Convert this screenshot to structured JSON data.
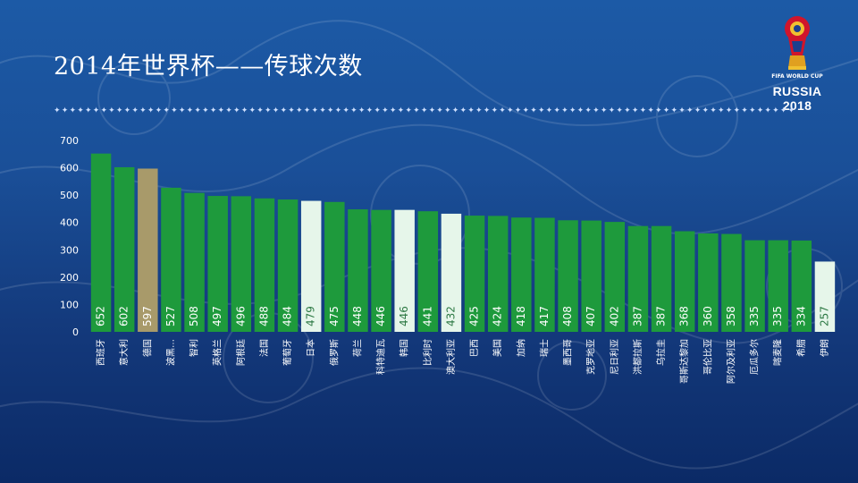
{
  "slide": {
    "title": "2014年世界杯——传球次数",
    "logo_line1": "FIFA WORLD CUP",
    "logo_line2": "RUSSIA 2018",
    "divider": "✦✦✦✦✦✦✦✦✦✦✦✦✦✦✦✦✦✦✦✦✦✦✦✦✦✦✦✦✦✦✦✦✦✦✦✦✦✦✦✦✦✦✦✦✦✦✦✦✦✦✦✦✦✦✦✦✦✦✦✦✦✦✦✦✦✦✦✦✦✦✦✦✦✦✦✦✦✦✦✦✦✦✦✦✦✦✦✦✦✦✦✦✦✦✦"
  },
  "chart_data": {
    "type": "bar",
    "title": "",
    "xlabel": "",
    "ylabel": "",
    "ylim": [
      0,
      700
    ],
    "yticks": [
      0,
      100,
      200,
      300,
      400,
      500,
      600,
      700
    ],
    "grid": false,
    "categories": [
      "西班牙",
      "意大利",
      "德国",
      "波黑…",
      "智利",
      "英格兰",
      "阿根廷",
      "法国",
      "葡萄牙",
      "日本",
      "俄罗斯",
      "荷兰",
      "科特迪瓦",
      "韩国",
      "比利时",
      "澳大利亚",
      "巴西",
      "美国",
      "加纳",
      "瑞士",
      "墨西哥",
      "克罗地亚",
      "尼日利亚",
      "洪都拉斯",
      "乌拉圭",
      "哥斯达黎加",
      "哥伦比亚",
      "阿尔及利亚",
      "厄瓜多尔",
      "喀麦隆",
      "希腊",
      "伊朗"
    ],
    "values": [
      652,
      602,
      597,
      527,
      508,
      497,
      496,
      488,
      484,
      479,
      475,
      448,
      446,
      446,
      441,
      432,
      425,
      424,
      418,
      417,
      408,
      407,
      402,
      387,
      387,
      368,
      360,
      358,
      335,
      335,
      334,
      257
    ],
    "bar_styles": [
      "green",
      "green",
      "gold",
      "green",
      "green",
      "green",
      "green",
      "green",
      "green",
      "light",
      "green",
      "green",
      "green",
      "light",
      "green",
      "light",
      "green",
      "green",
      "green",
      "green",
      "green",
      "green",
      "green",
      "green",
      "green",
      "green",
      "green",
      "green",
      "green",
      "green",
      "green",
      "light"
    ],
    "colors": {
      "green": "#1e9a3c",
      "gold": "#a89a6a",
      "light": "#e6f6ea",
      "axis_text": "#ffffff"
    }
  }
}
